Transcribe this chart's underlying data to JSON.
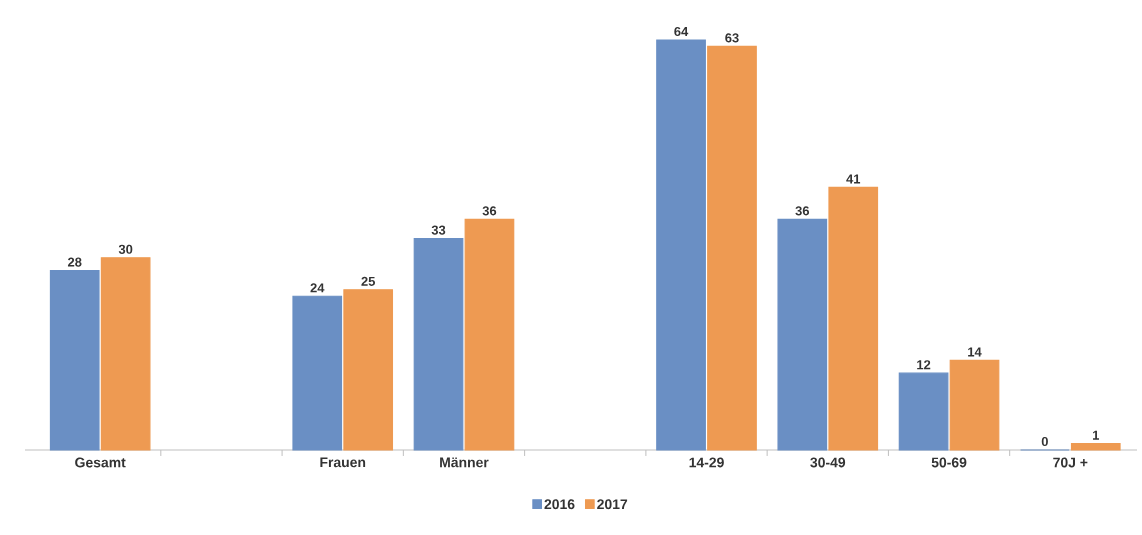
{
  "chart_data": {
    "type": "bar",
    "categories": [
      "Gesamt",
      null,
      "Frauen",
      "Männer",
      null,
      "14-29",
      "30-49",
      "50-69",
      "70J +"
    ],
    "series": [
      {
        "name": "2016",
        "color": "#6a8fc4",
        "values": [
          28,
          null,
          24,
          33,
          null,
          64,
          36,
          12,
          0
        ]
      },
      {
        "name": "2017",
        "color": "#ee9a52",
        "values": [
          30,
          null,
          25,
          36,
          null,
          63,
          41,
          14,
          1
        ]
      }
    ],
    "data_labels": true,
    "legend": "bottom"
  }
}
